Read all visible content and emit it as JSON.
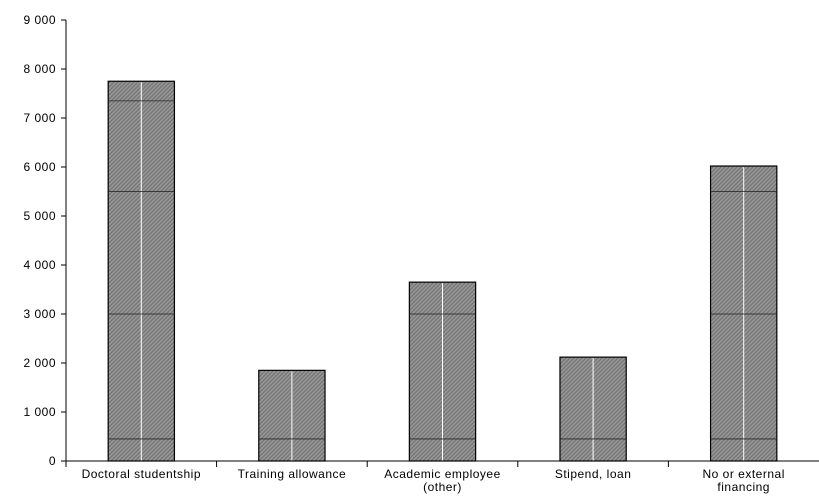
{
  "chart_data": {
    "type": "bar",
    "title": "",
    "xlabel": "",
    "ylabel": "",
    "categories": [
      [
        "Doctoral studentship"
      ],
      [
        "Training allowance"
      ],
      [
        "Academic employee",
        "(other)"
      ],
      [
        "Stipend, loan"
      ],
      [
        "No or external",
        "financing"
      ]
    ],
    "values": [
      7750,
      1850,
      3650,
      2120,
      6020
    ],
    "ylim": [
      0,
      9000
    ],
    "yticks": [
      0,
      1000,
      2000,
      3000,
      4000,
      5000,
      6000,
      7000,
      8000,
      9000
    ],
    "ytick_labels": [
      "0",
      "1 000",
      "2 000",
      "3 000",
      "4 000",
      "5 000",
      "6 000",
      "7 000",
      "8 000",
      "9 000"
    ],
    "grid": false,
    "legend": "none",
    "colors": {
      "bar_fill": "#8c8c8c",
      "bar_stroke": "#000000",
      "axis": "#000000"
    }
  }
}
